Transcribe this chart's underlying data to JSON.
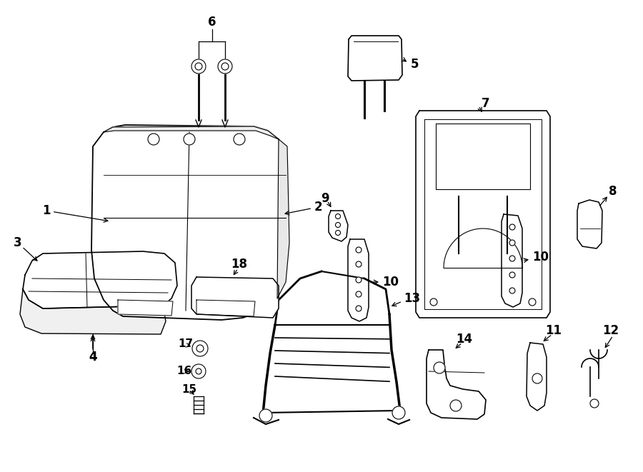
{
  "bg_color": "#ffffff",
  "line_color": "#000000",
  "figsize": [
    9.0,
    6.61
  ],
  "dpi": 100,
  "lw": 1.1,
  "font_size": 12
}
